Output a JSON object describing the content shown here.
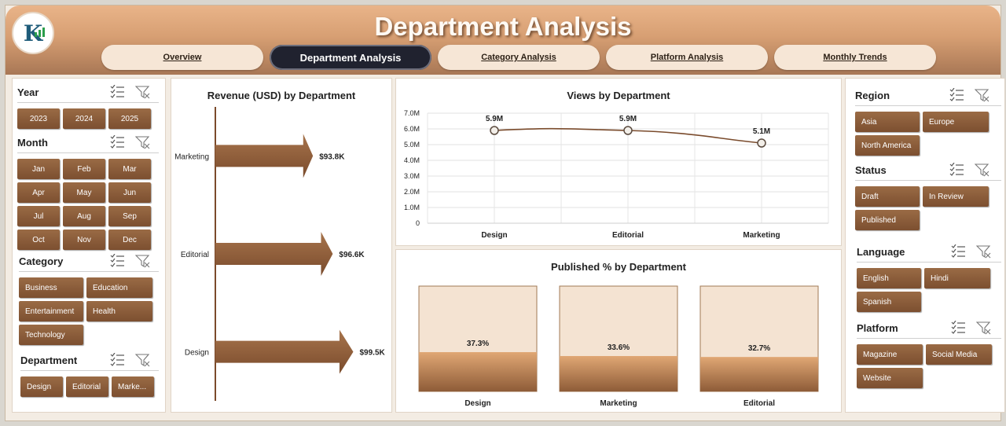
{
  "header": {
    "title": "Department Analysis",
    "tabs": [
      {
        "label": "Overview",
        "active": false
      },
      {
        "label": "Department Analysis",
        "active": true
      },
      {
        "label": "Category Analysis",
        "active": false
      },
      {
        "label": "Platform Analysis",
        "active": false
      },
      {
        "label": "Monthly Trends",
        "active": false
      }
    ]
  },
  "left_slicers": {
    "year": {
      "title": "Year",
      "items": [
        "2023",
        "2024",
        "2025"
      ]
    },
    "month": {
      "title": "Month",
      "items": [
        "Jan",
        "Feb",
        "Mar",
        "Apr",
        "May",
        "Jun",
        "Jul",
        "Aug",
        "Sep",
        "Oct",
        "Nov",
        "Dec"
      ]
    },
    "category": {
      "title": "Category",
      "items": [
        "Business",
        "Education",
        "Entertainment",
        "Health",
        "Technology"
      ]
    },
    "department": {
      "title": "Department",
      "items": [
        "Design",
        "Editorial",
        "Marke..."
      ]
    }
  },
  "right_slicers": {
    "region": {
      "title": "Region",
      "items": [
        "Asia",
        "Europe",
        "North America"
      ]
    },
    "status": {
      "title": "Status",
      "items": [
        "Draft",
        "In Review",
        "Published"
      ]
    },
    "language": {
      "title": "Language",
      "items": [
        "English",
        "Hindi",
        "Spanish"
      ]
    },
    "platform": {
      "title": "Platform",
      "items": [
        "Magazine",
        "Social Media",
        "Website"
      ]
    }
  },
  "icons": {
    "multiselect": "multi-select-icon",
    "clear_filter": "clear-filter-icon"
  },
  "colors": {
    "accent": "#7c4f30",
    "header": "#d79f73",
    "active_tab": "#20222f",
    "bar_fill": "#f3e2d1"
  },
  "chart_data": [
    {
      "type": "bar",
      "title": "Revenue (USD) by Department",
      "categories": [
        "Marketing",
        "Editorial",
        "Design"
      ],
      "values": [
        93.8,
        96.6,
        99.5
      ],
      "labels": [
        "$93.8K",
        "$96.6K",
        "$99.5K"
      ],
      "orientation": "horizontal",
      "unit": "K USD"
    },
    {
      "type": "line",
      "title": "Views by Department",
      "categories": [
        "Design",
        "Editorial",
        "Marketing"
      ],
      "values": [
        5.9,
        5.9,
        5.1
      ],
      "labels": [
        "5.9M",
        "5.9M",
        "5.1M"
      ],
      "yticks": [
        "0",
        "1.0M",
        "2.0M",
        "3.0M",
        "4.0M",
        "5.0M",
        "6.0M",
        "7.0M"
      ],
      "ylim": [
        0,
        7
      ],
      "unit": "M",
      "grid": true
    },
    {
      "type": "bar",
      "title": "Published % by Department",
      "categories": [
        "Design",
        "Marketing",
        "Editorial"
      ],
      "values": [
        37.3,
        33.6,
        32.7
      ],
      "labels": [
        "37.3%",
        "33.6%",
        "32.7%"
      ],
      "ylim": [
        0,
        100
      ]
    }
  ]
}
